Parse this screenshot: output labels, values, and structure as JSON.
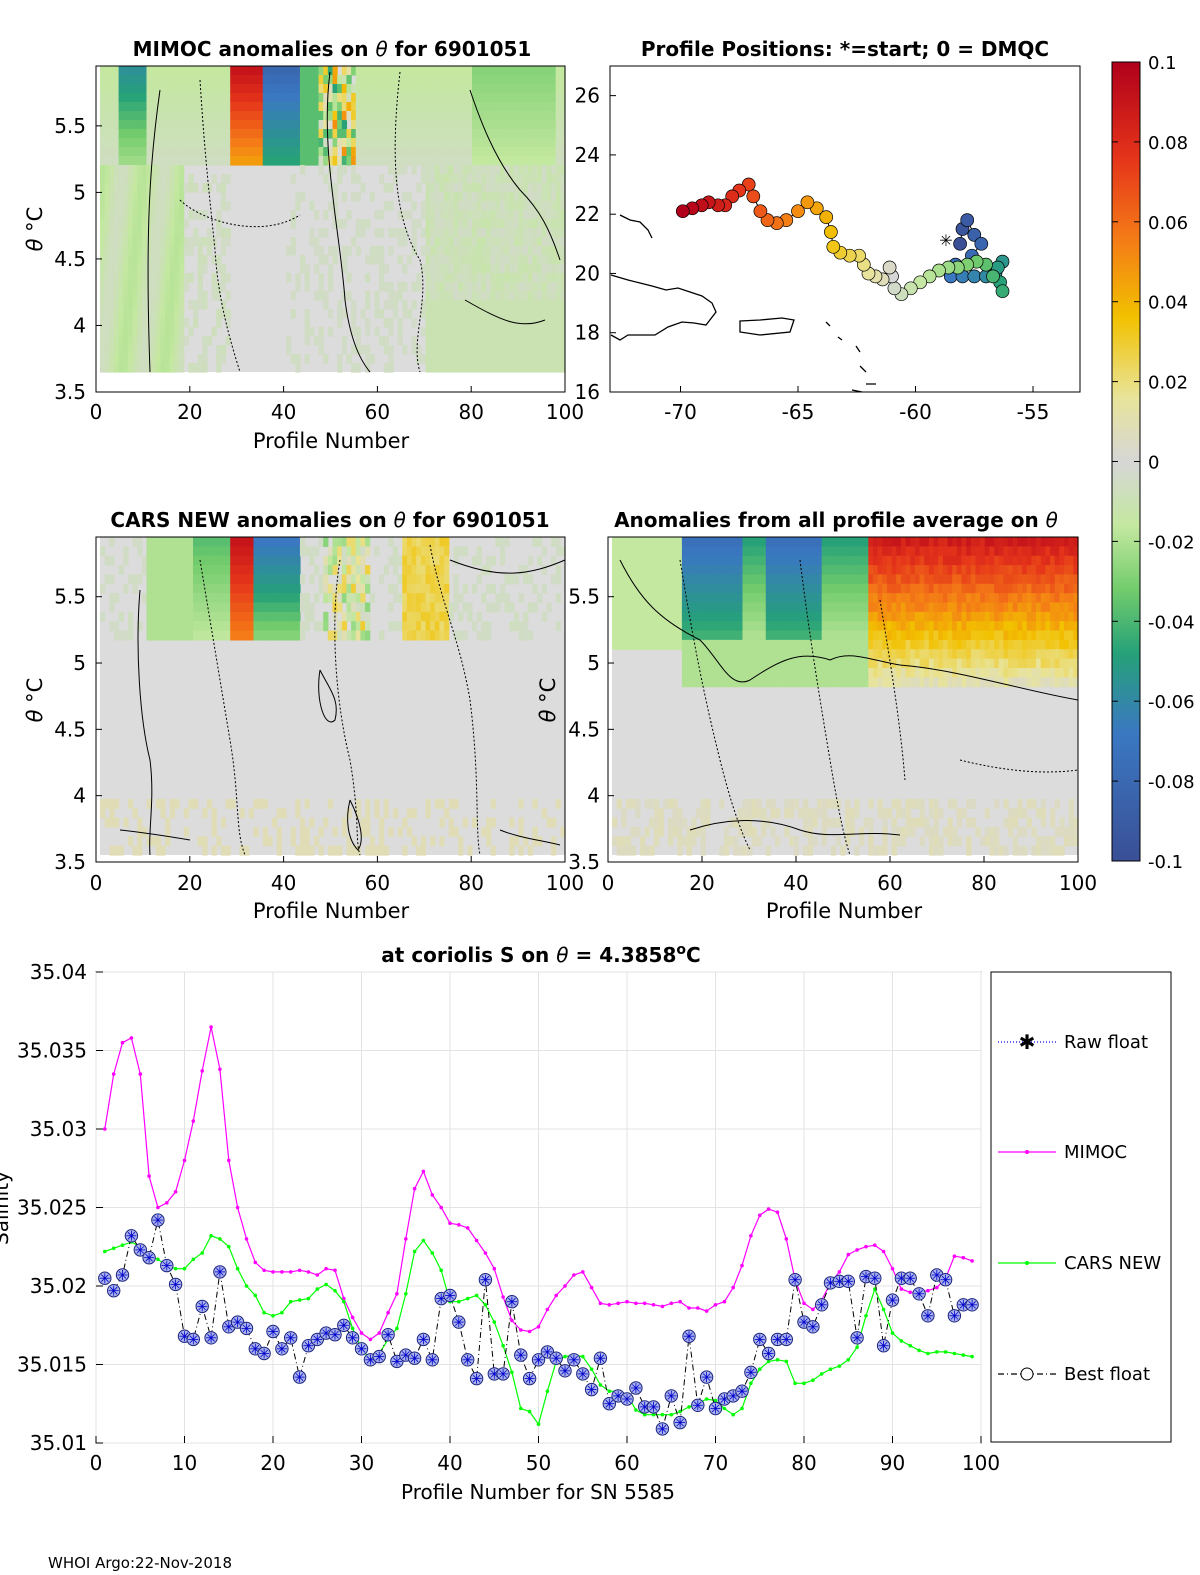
{
  "footer": "WHOI Argo:22-Nov-2018",
  "colorbar": {
    "ticks": [
      "0.1",
      "0.08",
      "0.06",
      "0.04",
      "0.02",
      "0",
      "-0.02",
      "-0.04",
      "-0.06",
      "-0.08",
      "-0.1"
    ],
    "range": [
      -0.1,
      0.1
    ]
  },
  "panels": {
    "mimoc": {
      "title_a": "MIMOC anomalies on",
      "title_b": "for 6901051",
      "theta": "θ",
      "ylabel_theta": "θ",
      "ylabel_unit": "°C",
      "xlabel": "Profile Number",
      "xticks": [
        "0",
        "20",
        "40",
        "60",
        "80",
        "100"
      ],
      "yticks": [
        "5.5",
        "5",
        "4.5",
        "4",
        "3.5"
      ],
      "ylim": [
        3.5,
        5.95
      ]
    },
    "positions": {
      "title": "Profile Positions: *=start; 0 = DMQC",
      "xticks": [
        "-70",
        "-65",
        "-60",
        "-55"
      ],
      "yticks": [
        "26",
        "24",
        "22",
        "20",
        "18",
        "16"
      ],
      "xlim": [
        -73,
        -53
      ],
      "ylim": [
        16,
        27
      ]
    },
    "cars": {
      "title_a": "CARS NEW anomalies on",
      "title_b": "for 6901051",
      "theta": "θ",
      "ylabel_theta": "θ",
      "ylabel_unit": "°C",
      "xlabel": "Profile Number",
      "xticks": [
        "0",
        "20",
        "40",
        "60",
        "80",
        "100"
      ],
      "yticks": [
        "5.5",
        "5",
        "4.5",
        "4",
        "3.5"
      ]
    },
    "avg": {
      "title_a": "Anomalies from all profile average on",
      "theta": "θ",
      "ylabel_theta": "θ",
      "ylabel_unit": "°C",
      "xlabel": "Profile Number",
      "xticks": [
        "0",
        "20",
        "40",
        "60",
        "80",
        "100"
      ],
      "yticks": [
        "5.5",
        "5",
        "4.5",
        "4",
        "3.5"
      ]
    }
  },
  "chart_data": {
    "type": "line",
    "title_a": "at coriolis S on",
    "title_theta": "θ",
    "title_b": "= 4.3858",
    "title_sup": "o",
    "title_c": "C",
    "xlabel": "Profile Number for SN 5585",
    "ylabel": "Salinity",
    "xlim": [
      0,
      100
    ],
    "ylim": [
      35.01,
      35.04
    ],
    "xticks": [
      "0",
      "10",
      "20",
      "30",
      "40",
      "50",
      "60",
      "70",
      "80",
      "90",
      "100"
    ],
    "yticks": [
      "35.04",
      "35.035",
      "35.03",
      "35.025",
      "35.02",
      "35.015",
      "35.01"
    ],
    "legend": [
      "Raw float",
      "MIMOC",
      "CARS NEW",
      "Best float"
    ],
    "colors": {
      "raw": "#0000ff",
      "mimoc": "#ff00ff",
      "cars": "#00ff00",
      "best": "#000000",
      "marker_fill": "#a9b3ea",
      "marker_edge": "#1a237e"
    },
    "x": [
      1,
      2,
      3,
      4,
      5,
      6,
      7,
      8,
      9,
      10,
      11,
      12,
      13,
      14,
      15,
      16,
      17,
      18,
      19,
      20,
      21,
      22,
      23,
      24,
      25,
      26,
      27,
      28,
      29,
      30,
      31,
      32,
      33,
      34,
      35,
      36,
      37,
      38,
      39,
      40,
      41,
      42,
      43,
      44,
      45,
      46,
      47,
      48,
      49,
      50,
      51,
      52,
      53,
      54,
      55,
      56,
      57,
      58,
      59,
      60,
      61,
      62,
      63,
      64,
      65,
      66,
      67,
      68,
      69,
      70,
      71,
      72,
      73,
      74,
      75,
      76,
      77,
      78,
      79,
      80,
      81,
      82,
      83,
      84,
      85,
      86,
      87,
      88,
      89,
      90,
      91,
      92,
      93,
      94,
      95,
      96,
      97,
      98,
      99
    ],
    "series": [
      {
        "name": "MIMOC",
        "values": [
          35.03,
          35.0335,
          35.0355,
          35.0358,
          35.0335,
          35.027,
          35.025,
          35.0253,
          35.026,
          35.028,
          35.0305,
          35.0337,
          35.0365,
          35.0338,
          35.028,
          35.025,
          35.023,
          35.0215,
          35.021,
          35.0209,
          35.0209,
          35.0209,
          35.021,
          35.0209,
          35.0207,
          35.0211,
          35.021,
          35.0192,
          35.018,
          35.017,
          35.0166,
          35.017,
          35.0183,
          35.0195,
          35.023,
          35.0262,
          35.0273,
          35.0258,
          35.025,
          35.024,
          35.0239,
          35.0237,
          35.0229,
          35.0221,
          35.0211,
          35.0193,
          35.0178,
          35.0172,
          35.0171,
          35.0174,
          35.0185,
          35.0194,
          35.02,
          35.0207,
          35.0209,
          35.0199,
          35.0189,
          35.0188,
          35.0189,
          35.019,
          35.0189,
          35.0189,
          35.0188,
          35.0187,
          35.0189,
          35.019,
          35.0186,
          35.0186,
          35.0184,
          35.0188,
          35.019,
          35.0199,
          35.0213,
          35.0232,
          35.0245,
          35.0249,
          35.0247,
          35.023,
          35.0204,
          35.0189,
          35.0185,
          35.0191,
          35.0202,
          35.0209,
          35.022,
          35.0223,
          35.0225,
          35.0226,
          35.0222,
          35.0211,
          35.0198,
          35.0196,
          35.0196,
          35.0197,
          35.0199,
          35.0205,
          35.0219,
          35.0218,
          35.0216
        ]
      },
      {
        "name": "CARS NEW",
        "values": [
          35.0222,
          35.0224,
          35.0226,
          35.0228,
          35.0225,
          35.0219,
          35.0217,
          35.0213,
          35.0211,
          35.0211,
          35.0217,
          35.0221,
          35.0232,
          35.023,
          35.0225,
          35.0211,
          35.02,
          35.0194,
          35.0183,
          35.0181,
          35.0183,
          35.019,
          35.0191,
          35.0192,
          35.0198,
          35.0201,
          35.0197,
          35.019,
          35.0173,
          35.016,
          35.0153,
          35.0157,
          35.0166,
          35.0173,
          35.0195,
          35.0222,
          35.0229,
          35.0221,
          35.021,
          35.019,
          35.019,
          35.0192,
          35.0194,
          35.0188,
          35.0177,
          35.0162,
          35.0145,
          35.0122,
          35.012,
          35.0112,
          35.0133,
          35.0152,
          35.0155,
          35.0156,
          35.0155,
          35.0147,
          35.0137,
          35.0133,
          35.0133,
          35.0131,
          35.0121,
          35.0118,
          35.0118,
          35.0118,
          35.0118,
          35.012,
          35.0123,
          35.0125,
          35.0128,
          35.0127,
          35.0122,
          35.0118,
          35.0122,
          35.0138,
          35.0147,
          35.0152,
          35.0153,
          35.0152,
          35.0138,
          35.0138,
          35.014,
          35.0144,
          35.0147,
          35.0149,
          35.0153,
          35.0161,
          35.0181,
          35.0198,
          35.0185,
          35.017,
          35.0165,
          35.0162,
          35.0159,
          35.0157,
          35.0158,
          35.0158,
          35.0157,
          35.0156,
          35.0155
        ]
      },
      {
        "name": "Best float",
        "values": [
          35.0205,
          35.0197,
          35.0207,
          35.0232,
          35.0223,
          35.0218,
          35.0242,
          35.0213,
          35.0201,
          35.0168,
          35.0166,
          35.0187,
          35.0167,
          35.0209,
          35.0174,
          35.0177,
          35.0173,
          35.016,
          35.0157,
          35.0171,
          35.016,
          35.0167,
          35.0142,
          35.0162,
          35.0166,
          35.017,
          35.0169,
          35.0175,
          35.0167,
          35.016,
          35.0153,
          35.0155,
          35.0169,
          35.0152,
          35.0156,
          35.0154,
          35.0166,
          35.0153,
          35.0192,
          35.0194,
          35.0177,
          35.0153,
          35.0141,
          35.0204,
          35.0144,
          35.0144,
          35.019,
          35.0156,
          35.0141,
          35.0153,
          35.0158,
          35.0154,
          35.0146,
          35.0153,
          35.0144,
          35.0134,
          35.0154,
          35.0125,
          35.013,
          35.0128,
          35.0135,
          35.0123,
          35.0123,
          35.0109,
          35.013,
          35.0113,
          35.0168,
          35.0124,
          35.0142,
          35.0122,
          35.0128,
          35.013,
          35.0133,
          35.0145,
          35.0166,
          35.0157,
          35.0166,
          35.0166,
          35.0204,
          35.0177,
          35.0174,
          35.0188,
          35.0202,
          35.0203,
          35.0203,
          35.0167,
          35.0206,
          35.0205,
          35.0162,
          35.0191,
          35.0205,
          35.0205,
          35.0195,
          35.0181,
          35.0207,
          35.0204,
          35.0181,
          35.0188,
          35.0188
        ]
      }
    ]
  }
}
